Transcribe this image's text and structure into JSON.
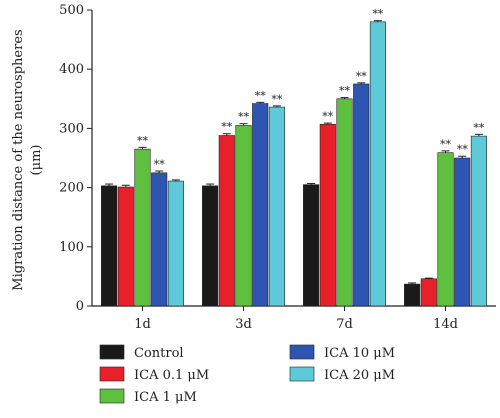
{
  "chart_data": {
    "type": "bar",
    "categories": [
      "1d",
      "3d",
      "7d",
      "14d"
    ],
    "ylabel_line1": "Migration distance of the neurospheres",
    "ylabel_line2": "(μm)",
    "ylim": [
      0,
      500
    ],
    "yticks": [
      0,
      100,
      200,
      300,
      400,
      500
    ],
    "grid": false,
    "legend_position": "bottom",
    "significance_mark": "**",
    "series": [
      {
        "name": "Control",
        "color": "#1a1a1a",
        "values": [
          203,
          203,
          205,
          37
        ],
        "errors": [
          3,
          3,
          2,
          2
        ],
        "significant": [
          false,
          false,
          false,
          false
        ]
      },
      {
        "name": "ICA 0.1 μM",
        "color": "#e8202a",
        "values": [
          201,
          288,
          307,
          46
        ],
        "errors": [
          3,
          3,
          2,
          1
        ],
        "significant": [
          false,
          true,
          true,
          false
        ]
      },
      {
        "name": "ICA 1 μM",
        "color": "#5fbf3f",
        "values": [
          265,
          305,
          350,
          259
        ],
        "errors": [
          3,
          3,
          2,
          3
        ],
        "significant": [
          true,
          true,
          true,
          true
        ]
      },
      {
        "name": "ICA 10 μM",
        "color": "#2f55b2",
        "values": [
          225,
          342,
          375,
          250
        ],
        "errors": [
          3,
          2,
          2,
          3
        ],
        "significant": [
          true,
          true,
          true,
          true
        ]
      },
      {
        "name": "ICA 20 μM",
        "color": "#5ec9d9",
        "values": [
          211,
          336,
          480,
          287
        ],
        "errors": [
          2,
          2,
          2,
          3
        ],
        "significant": [
          false,
          true,
          true,
          true
        ]
      }
    ]
  }
}
